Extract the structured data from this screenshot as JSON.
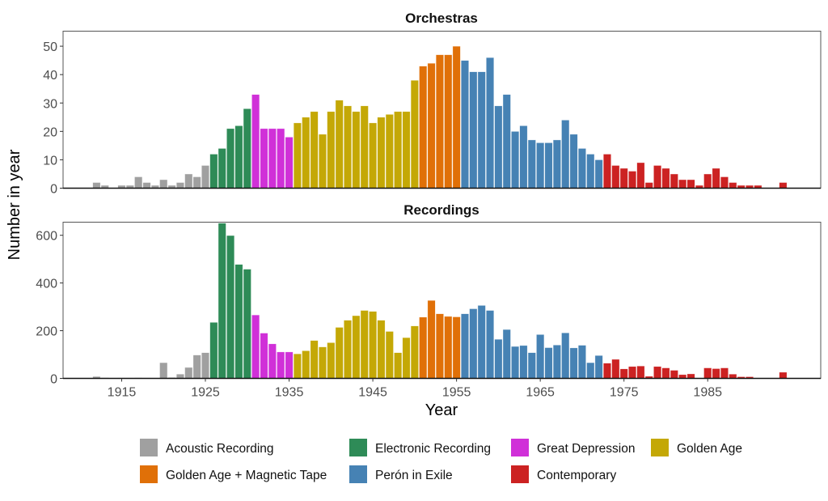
{
  "chart_data": [
    {
      "type": "bar",
      "title": "Orchestras",
      "ylabel": "Number in year",
      "xlabel": "Year",
      "ylim": [
        0,
        55.3
      ],
      "yticks": [
        0,
        10,
        20,
        30,
        40,
        50
      ],
      "values": [
        2,
        1,
        0,
        1,
        1,
        4,
        2,
        1,
        3,
        1,
        2,
        5,
        4,
        8,
        12,
        14,
        21,
        22,
        28,
        33,
        21,
        21,
        21,
        18,
        23,
        25,
        27,
        19,
        27,
        31,
        29,
        27,
        29,
        23,
        25,
        26,
        27,
        27,
        38,
        43,
        44,
        47,
        47,
        50,
        45,
        41,
        41,
        46,
        29,
        33,
        20,
        22,
        17,
        16,
        16,
        17,
        24,
        19,
        14,
        12,
        10,
        12,
        8,
        7,
        6,
        9,
        2,
        8,
        7,
        5,
        3,
        3,
        1,
        5,
        7,
        4,
        2,
        1,
        1,
        1,
        0,
        0,
        2
      ]
    },
    {
      "type": "bar",
      "title": "Recordings",
      "ylabel": "Number in year",
      "xlabel": "Year",
      "ylim": [
        0,
        655
      ],
      "yticks": [
        0,
        200,
        400,
        600
      ],
      "values": [
        8,
        3,
        0,
        2,
        2,
        3,
        2,
        0,
        66,
        4,
        18,
        46,
        98,
        108,
        235,
        651,
        599,
        478,
        458,
        266,
        190,
        145,
        111,
        111,
        103,
        116,
        159,
        132,
        150,
        214,
        244,
        263,
        285,
        281,
        244,
        197,
        108,
        171,
        220,
        257,
        327,
        271,
        260,
        258,
        271,
        292,
        306,
        285,
        164,
        205,
        134,
        138,
        108,
        184,
        129,
        140,
        191,
        128,
        139,
        66,
        96,
        64,
        80,
        40,
        50,
        52,
        9,
        50,
        44,
        34,
        16,
        19,
        0,
        44,
        41,
        44,
        18,
        7,
        7,
        0,
        0,
        0,
        26
      ]
    }
  ],
  "shared": {
    "years_start": 1912,
    "years_end": 1994,
    "xlim": [
      1908,
      1998.5
    ],
    "xticks": [
      "1915",
      "1925",
      "1935",
      "1945",
      "1955",
      "1965",
      "1975",
      "1985"
    ],
    "xlabel": "Year",
    "ylabel": "Number in year",
    "grid": false,
    "legend_position": "bottom"
  },
  "eras": [
    {
      "name": "Acoustic Recording",
      "start": 1912,
      "end": 1925,
      "color": "#a0a0a0"
    },
    {
      "name": "Electronic Recording",
      "start": 1926,
      "end": 1930,
      "color": "#2e8b57"
    },
    {
      "name": "Great Depression",
      "start": 1931,
      "end": 1935,
      "color": "#d030d8"
    },
    {
      "name": "Golden Age",
      "start": 1936,
      "end": 1950,
      "color": "#c4a806"
    },
    {
      "name": "Golden Age + Magnetic Tape",
      "start": 1951,
      "end": 1955,
      "color": "#e07008"
    },
    {
      "name": "Perón in Exile",
      "start": 1956,
      "end": 1972,
      "color": "#4682b4"
    },
    {
      "name": "Contemporary",
      "start": 1973,
      "end": 1994,
      "color": "#cc2222"
    }
  ]
}
